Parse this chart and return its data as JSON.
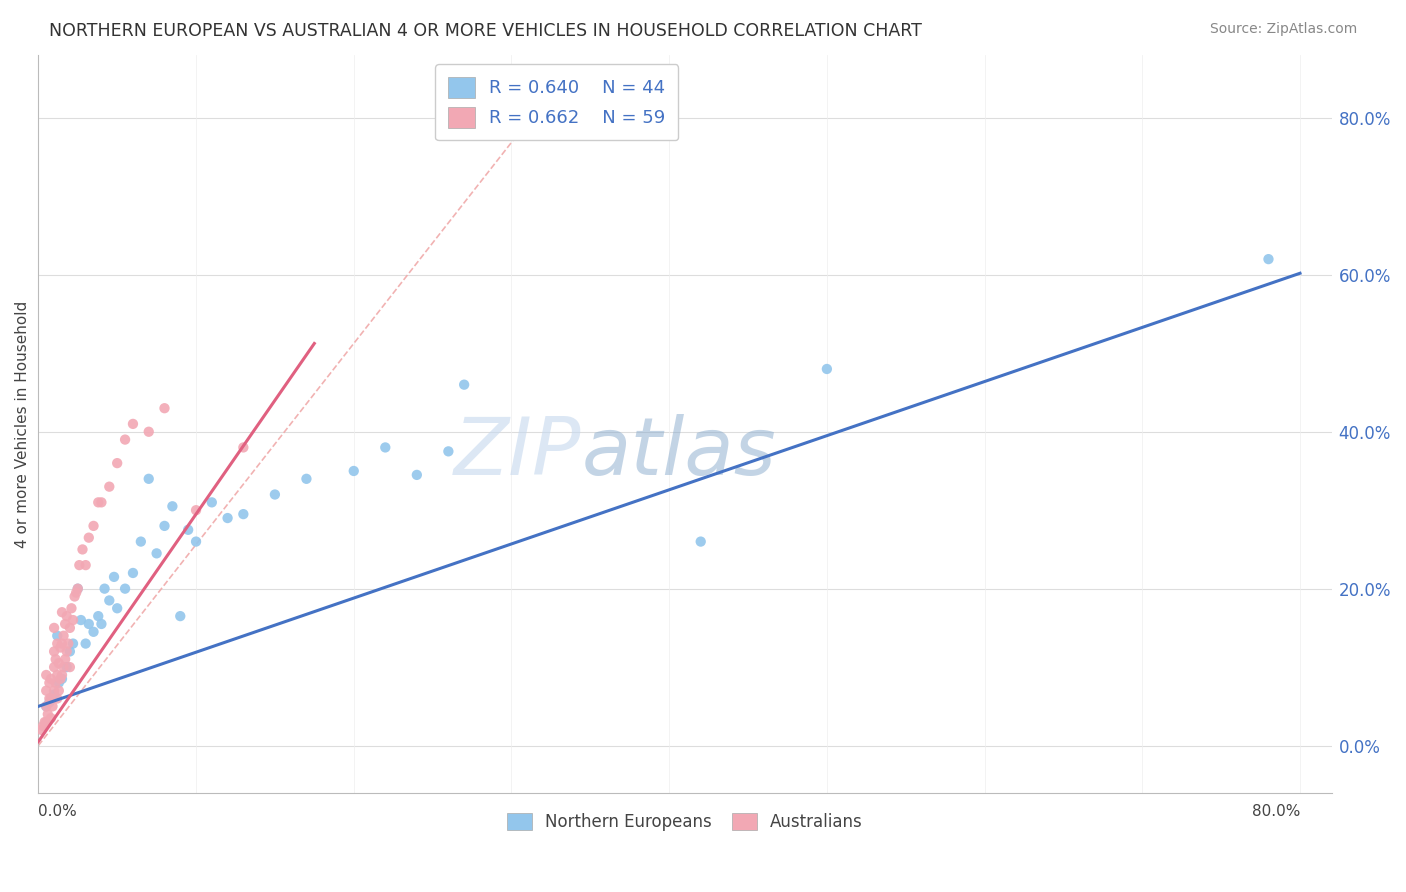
{
  "title": "NORTHERN EUROPEAN VS AUSTRALIAN 4 OR MORE VEHICLES IN HOUSEHOLD CORRELATION CHART",
  "source": "Source: ZipAtlas.com",
  "ylabel": "4 or more Vehicles in Household",
  "xlim": [
    0,
    0.82
  ],
  "ylim": [
    -0.06,
    0.88
  ],
  "ytick_values": [
    0.0,
    0.2,
    0.4,
    0.6,
    0.8
  ],
  "watermark": "ZIPatlas",
  "legend_r1": "R = 0.640",
  "legend_n1": "N = 44",
  "legend_r2": "R = 0.662",
  "legend_n2": "N = 59",
  "blue_dot_color": "#93C6EC",
  "pink_dot_color": "#F2A8B4",
  "blue_line_color": "#4472C4",
  "pink_line_color": "#E06080",
  "diagonal_color": "#F0AAAA",
  "ne_x": [
    0.005,
    0.007,
    0.008,
    0.01,
    0.012,
    0.013,
    0.015,
    0.018,
    0.02,
    0.022,
    0.025,
    0.027,
    0.03,
    0.032,
    0.035,
    0.038,
    0.04,
    0.042,
    0.045,
    0.048,
    0.05,
    0.055,
    0.06,
    0.065,
    0.07,
    0.075,
    0.08,
    0.085,
    0.09,
    0.095,
    0.1,
    0.11,
    0.12,
    0.13,
    0.15,
    0.17,
    0.2,
    0.22,
    0.24,
    0.26,
    0.27,
    0.42,
    0.5,
    0.78
  ],
  "ne_y": [
    0.05,
    0.055,
    0.06,
    0.065,
    0.14,
    0.08,
    0.085,
    0.1,
    0.12,
    0.13,
    0.2,
    0.16,
    0.13,
    0.155,
    0.145,
    0.165,
    0.155,
    0.2,
    0.185,
    0.215,
    0.175,
    0.2,
    0.22,
    0.26,
    0.34,
    0.245,
    0.28,
    0.305,
    0.165,
    0.275,
    0.26,
    0.31,
    0.29,
    0.295,
    0.32,
    0.34,
    0.35,
    0.38,
    0.345,
    0.375,
    0.46,
    0.26,
    0.48,
    0.62
  ],
  "au_x": [
    0.002,
    0.003,
    0.004,
    0.005,
    0.005,
    0.005,
    0.005,
    0.006,
    0.007,
    0.007,
    0.008,
    0.008,
    0.008,
    0.009,
    0.01,
    0.01,
    0.01,
    0.01,
    0.011,
    0.011,
    0.012,
    0.012,
    0.012,
    0.013,
    0.013,
    0.014,
    0.014,
    0.015,
    0.015,
    0.015,
    0.016,
    0.016,
    0.017,
    0.017,
    0.018,
    0.018,
    0.019,
    0.02,
    0.02,
    0.021,
    0.022,
    0.023,
    0.024,
    0.025,
    0.026,
    0.028,
    0.03,
    0.032,
    0.035,
    0.038,
    0.04,
    0.045,
    0.05,
    0.055,
    0.06,
    0.07,
    0.08,
    0.1,
    0.13
  ],
  "au_y": [
    0.02,
    0.025,
    0.03,
    0.03,
    0.05,
    0.07,
    0.09,
    0.04,
    0.06,
    0.08,
    0.035,
    0.06,
    0.085,
    0.05,
    0.07,
    0.1,
    0.12,
    0.15,
    0.08,
    0.11,
    0.06,
    0.09,
    0.13,
    0.07,
    0.105,
    0.085,
    0.125,
    0.09,
    0.13,
    0.17,
    0.1,
    0.14,
    0.11,
    0.155,
    0.12,
    0.165,
    0.13,
    0.1,
    0.15,
    0.175,
    0.16,
    0.19,
    0.195,
    0.2,
    0.23,
    0.25,
    0.23,
    0.265,
    0.28,
    0.31,
    0.31,
    0.33,
    0.36,
    0.39,
    0.41,
    0.4,
    0.43,
    0.3,
    0.38
  ]
}
